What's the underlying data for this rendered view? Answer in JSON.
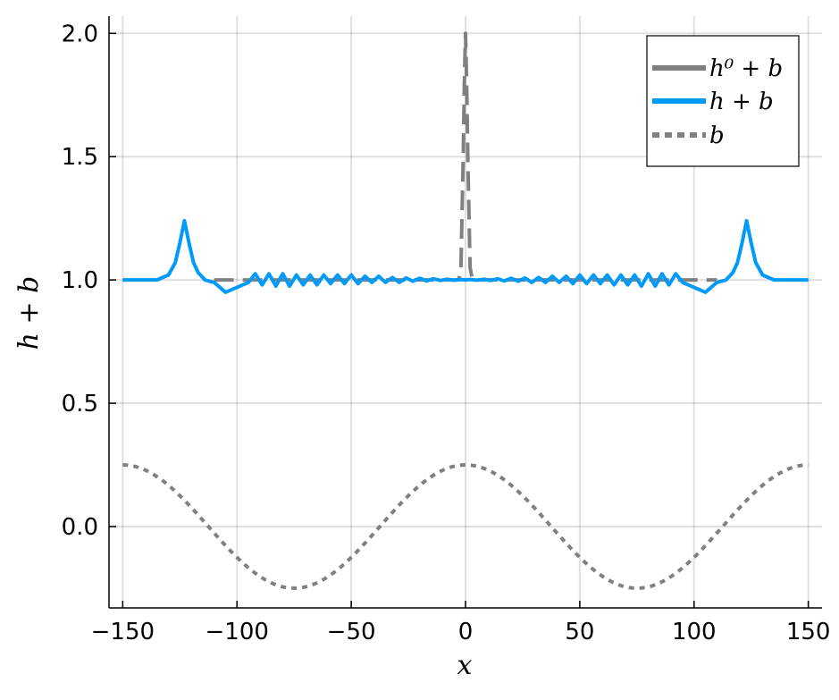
{
  "chart_data": {
    "type": "line",
    "xlabel": "x",
    "ylabel": "h + b",
    "xlim": [
      -156,
      156
    ],
    "ylim": [
      -0.33,
      2.07
    ],
    "xticks": [
      -150,
      -100,
      -50,
      0,
      50,
      100,
      150
    ],
    "xtick_labels": [
      "−150",
      "−100",
      "−50",
      "0",
      "50",
      "100",
      "150"
    ],
    "yticks": [
      0.0,
      0.5,
      1.0,
      1.5,
      2.0
    ],
    "ytick_labels": [
      "0.0",
      "0.5",
      "1.0",
      "1.5",
      "2.0"
    ],
    "grid": true,
    "legend_position": "top-right",
    "series": [
      {
        "name": "h⁰ + b",
        "legend_label": "h⁰ + b",
        "color": "#808080",
        "style": "dashed",
        "x": [
          -110,
          -3,
          -2,
          -1,
          -0.5,
          0,
          0.5,
          1,
          2,
          3,
          110
        ],
        "y": [
          1.0,
          1.0,
          1.05,
          1.5,
          1.8,
          2.0,
          1.8,
          1.5,
          1.05,
          1.0,
          1.0
        ]
      },
      {
        "name": "h + b",
        "legend_label": "h + b",
        "color": "#009AF9",
        "style": "solid",
        "x": [
          -150,
          -135,
          -130,
          -127,
          -125,
          -123,
          -121,
          -119,
          -117,
          -114,
          -110,
          -105,
          -100,
          -95,
          -92,
          -89,
          -86,
          -83,
          -80,
          -77,
          -74,
          -71,
          -68,
          -65,
          -62,
          -59,
          -56,
          -53,
          -50,
          -47,
          -44,
          -41,
          -38,
          -35,
          -32,
          -29,
          -26,
          -23,
          -20,
          -17,
          -14,
          -11,
          -8,
          -5,
          -2,
          0,
          2,
          5,
          8,
          11,
          14,
          17,
          20,
          23,
          26,
          29,
          32,
          35,
          38,
          41,
          44,
          47,
          50,
          53,
          56,
          59,
          62,
          65,
          68,
          71,
          74,
          77,
          80,
          83,
          86,
          89,
          92,
          95,
          100,
          105,
          110,
          114,
          117,
          119,
          121,
          123,
          125,
          127,
          130,
          135,
          150
        ],
        "y": [
          1.0,
          1.0,
          1.02,
          1.07,
          1.15,
          1.24,
          1.15,
          1.07,
          1.03,
          1.0,
          0.99,
          0.95,
          0.97,
          0.99,
          1.025,
          0.98,
          1.025,
          0.975,
          1.025,
          0.975,
          1.02,
          0.98,
          1.02,
          0.98,
          1.02,
          0.985,
          1.02,
          0.985,
          1.02,
          0.985,
          1.015,
          0.99,
          1.015,
          0.99,
          1.01,
          0.99,
          1.008,
          0.995,
          1.007,
          0.996,
          1.005,
          0.998,
          1.003,
          0.999,
          1.002,
          1.0,
          1.002,
          0.999,
          1.003,
          0.998,
          1.005,
          0.996,
          1.007,
          0.995,
          1.008,
          0.99,
          1.01,
          0.99,
          1.015,
          0.99,
          1.015,
          0.985,
          1.02,
          0.985,
          1.02,
          0.985,
          1.02,
          0.98,
          1.02,
          0.98,
          1.02,
          0.975,
          1.025,
          0.975,
          1.025,
          0.98,
          1.025,
          0.99,
          0.97,
          0.95,
          0.99,
          1.0,
          1.03,
          1.07,
          1.15,
          1.24,
          1.15,
          1.07,
          1.02,
          1.0,
          1.0
        ]
      },
      {
        "name": "b",
        "legend_label": "b",
        "color": "#808080",
        "style": "dotted",
        "formula": "0.25*cos(2*pi*x/150)",
        "x_range": [
          -150,
          150
        ],
        "y_range": [
          -0.25,
          0.25
        ]
      }
    ]
  }
}
